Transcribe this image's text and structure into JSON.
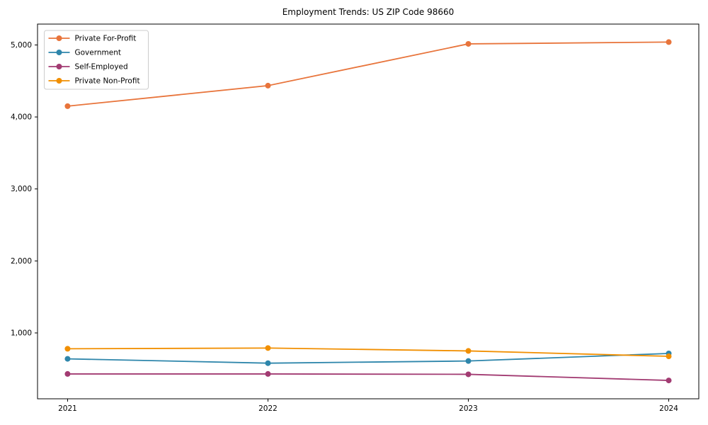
{
  "chart_data": {
    "type": "line",
    "title": "Employment Trends: US ZIP Code 98660",
    "xlabel": "",
    "ylabel": "",
    "categories": [
      "2021",
      "2022",
      "2023",
      "2024"
    ],
    "series": [
      {
        "name": "Private For-Profit",
        "color": "#E8743B",
        "values": [
          4150,
          4435,
          5015,
          5040
        ]
      },
      {
        "name": "Government",
        "color": "#2E86AB",
        "values": [
          640,
          580,
          610,
          715
        ]
      },
      {
        "name": "Self-Employed",
        "color": "#A23B72",
        "values": [
          430,
          430,
          425,
          340
        ]
      },
      {
        "name": "Private Non-Profit",
        "color": "#F18F01",
        "values": [
          780,
          790,
          750,
          675
        ]
      }
    ],
    "yticks": [
      {
        "value": 1000,
        "label": "1,000"
      },
      {
        "value": 2000,
        "label": "2,000"
      },
      {
        "value": 3000,
        "label": "3,000"
      },
      {
        "value": 4000,
        "label": "4,000"
      },
      {
        "value": 5000,
        "label": "5,000"
      }
    ],
    "ylim": [
      85,
      5290
    ],
    "xlim": [
      -0.15,
      3.15
    ],
    "grid": false,
    "legend_position": "upper-left",
    "marker": "circle",
    "spine_color": "#000000",
    "background_color": "#ffffff",
    "legend_border_color": "#cccccc"
  }
}
